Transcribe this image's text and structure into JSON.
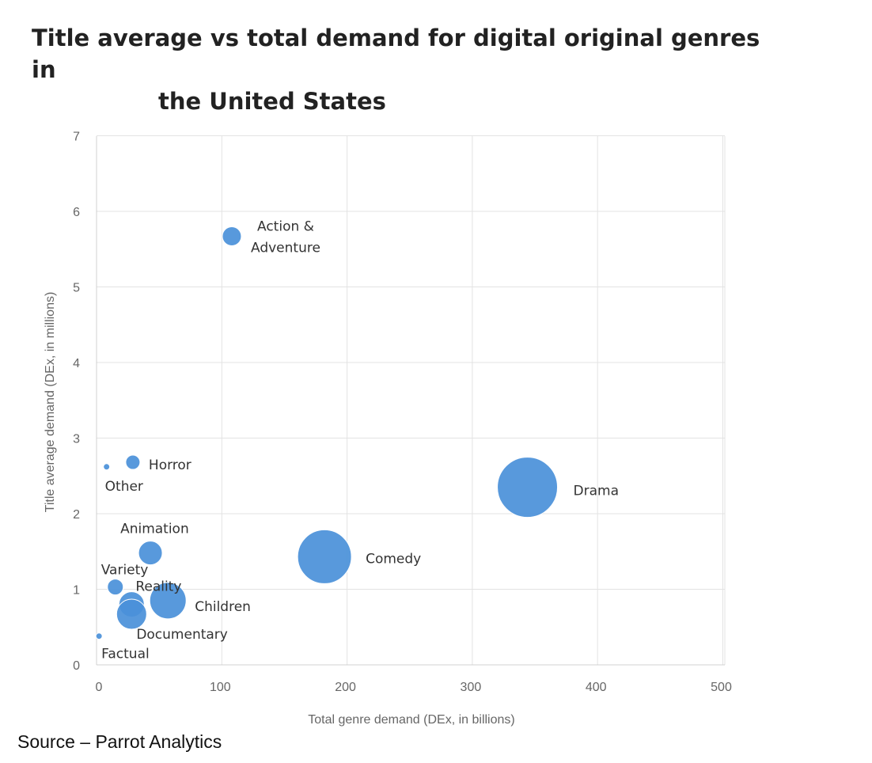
{
  "chart_data": {
    "type": "scatter",
    "title_lines": [
      "Title average vs total demand for digital original genres in",
      "the United States"
    ],
    "xlabel": "Total genre demand (DEx, in billions)",
    "ylabel": "Title average demand (DEx, in millions)",
    "xlim": [
      0,
      500
    ],
    "ylim": [
      0,
      7
    ],
    "x_ticks": [
      0,
      100,
      200,
      300,
      400,
      500
    ],
    "y_ticks": [
      0,
      1,
      2,
      3,
      4,
      5,
      6,
      7
    ],
    "grid": true,
    "marker_color": "#4a90d9",
    "points": [
      {
        "label": "Action &\nAdventure",
        "x": 108,
        "y": 5.67,
        "size": 12
      },
      {
        "label": "Horror",
        "x": 29,
        "y": 2.68,
        "size": 9
      },
      {
        "label": "Other",
        "x": 8,
        "y": 2.62,
        "size": 4
      },
      {
        "label": "Drama",
        "x": 344,
        "y": 2.35,
        "size": 38
      },
      {
        "label": "Animation",
        "x": 43,
        "y": 1.48,
        "size": 15
      },
      {
        "label": "Comedy",
        "x": 182,
        "y": 1.43,
        "size": 34
      },
      {
        "label": "Variety",
        "x": 15,
        "y": 1.03,
        "size": 10
      },
      {
        "label": "Reality",
        "x": 28,
        "y": 0.8,
        "size": 16
      },
      {
        "label": "Children",
        "x": 57,
        "y": 0.85,
        "size": 23
      },
      {
        "label": "Documentary",
        "x": 28,
        "y": 0.67,
        "size": 19
      },
      {
        "label": "Factual",
        "x": 2,
        "y": 0.38,
        "size": 4
      }
    ]
  },
  "source": "Source – Parrot Analytics"
}
